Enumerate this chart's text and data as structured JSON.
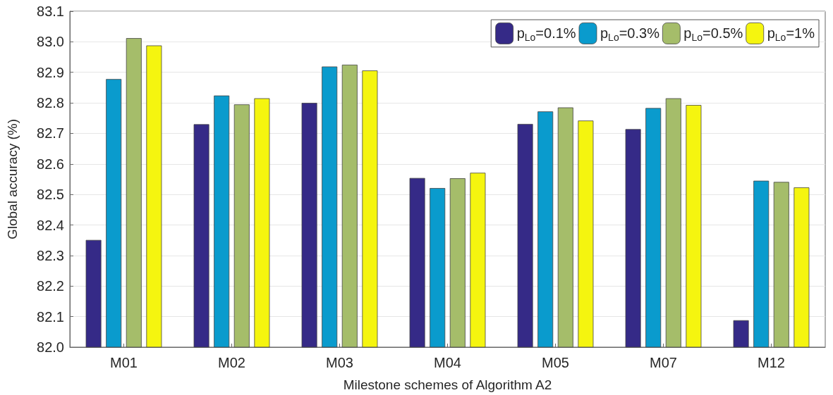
{
  "chart_data": {
    "type": "bar",
    "xlabel": "Milestone schemes of Algorithm A2",
    "ylabel": "Global accuracy (%)",
    "categories": [
      "M01",
      "M02",
      "M03",
      "M04",
      "M05",
      "M07",
      "M12"
    ],
    "series": [
      {
        "name": "p$_{Lo}$=0.1%",
        "color": "#352a87",
        "values": [
          82.351,
          82.73,
          82.8,
          82.554,
          82.731,
          82.714,
          82.088
        ]
      },
      {
        "name": "p$_{Lo}$=0.3%",
        "color": "#0a9bcd",
        "values": [
          82.878,
          82.824,
          82.919,
          82.521,
          82.772,
          82.783,
          82.545
        ]
      },
      {
        "name": "p$_{Lo}$=0.5%",
        "color": "#a5bd6a",
        "values": [
          83.012,
          82.795,
          82.925,
          82.553,
          82.785,
          82.815,
          82.541
        ]
      },
      {
        "name": "p$_{Lo}$=1%",
        "color": "#f5f50f",
        "values": [
          82.988,
          82.815,
          82.906,
          82.571,
          82.742,
          82.793,
          82.523
        ]
      }
    ],
    "ylim": [
      82,
      83.1
    ],
    "yticks": [
      {
        "value": 82,
        "label": "82.0"
      },
      82.1,
      82.2,
      82.3,
      82.4,
      82.5,
      82.6,
      82.7,
      82.8,
      82.9,
      {
        "value": 83,
        "label": "83.0"
      },
      83.1
    ],
    "grid": "y",
    "legend": "top right"
  }
}
